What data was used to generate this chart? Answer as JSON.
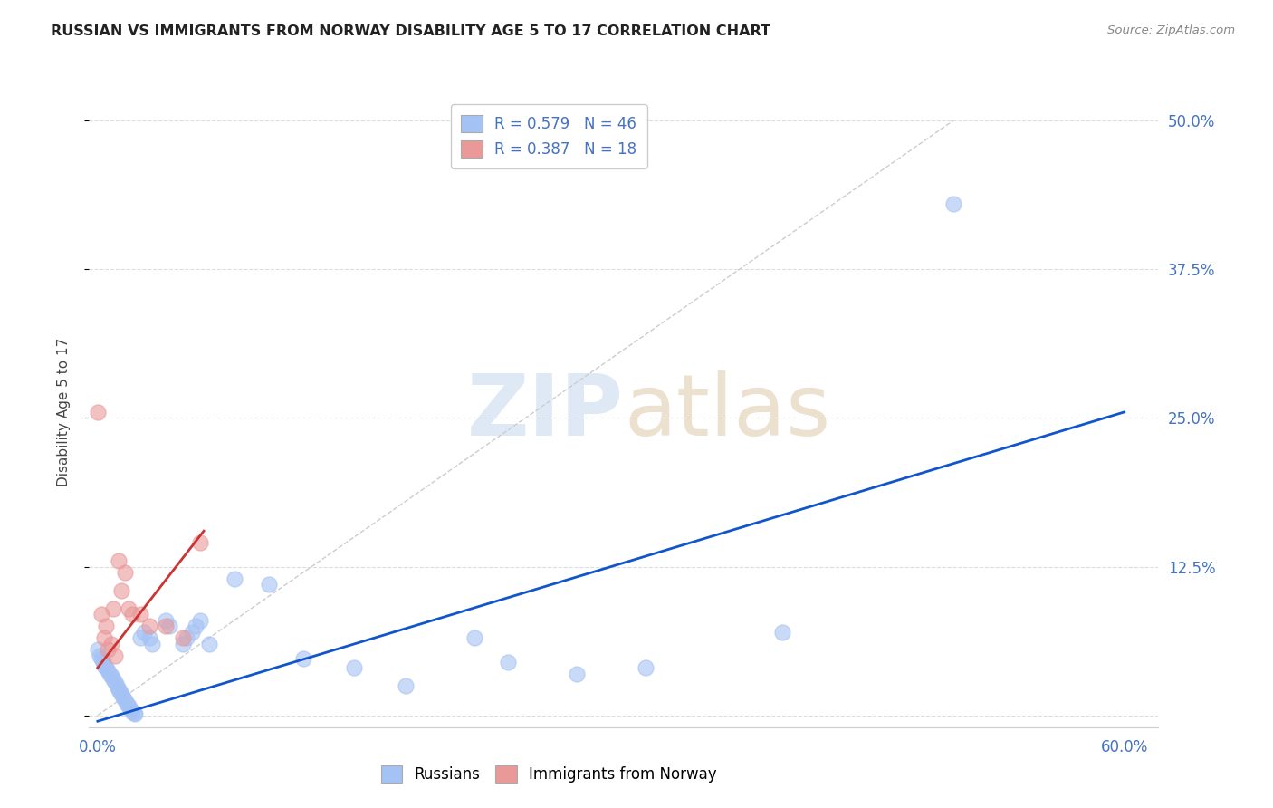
{
  "title": "RUSSIAN VS IMMIGRANTS FROM NORWAY DISABILITY AGE 5 TO 17 CORRELATION CHART",
  "source": "Source: ZipAtlas.com",
  "ylabel_label": "Disability Age 5 to 17",
  "xlim": [
    -0.005,
    0.62
  ],
  "ylim": [
    -0.01,
    0.52
  ],
  "ytick_positions_right": [
    0.0,
    0.125,
    0.25,
    0.375,
    0.5
  ],
  "ytick_labels_right": [
    "",
    "12.5%",
    "25.0%",
    "37.5%",
    "50.0%"
  ],
  "russian_R": "0.579",
  "russian_N": "46",
  "norway_R": "0.387",
  "norway_N": "18",
  "russian_color": "#a4c2f4",
  "norway_color": "#ea9999",
  "russian_line_color": "#1155cc",
  "norway_line_color": "#cc3333",
  "diagonal_color": "#cccccc",
  "background_color": "#ffffff",
  "russians_x": [
    0.0,
    0.001,
    0.002,
    0.003,
    0.004,
    0.005,
    0.006,
    0.007,
    0.008,
    0.009,
    0.01,
    0.011,
    0.012,
    0.013,
    0.014,
    0.015,
    0.016,
    0.017,
    0.018,
    0.019,
    0.02,
    0.021,
    0.022,
    0.025,
    0.027,
    0.03,
    0.032,
    0.04,
    0.042,
    0.05,
    0.052,
    0.055,
    0.057,
    0.06,
    0.065,
    0.08,
    0.1,
    0.12,
    0.15,
    0.18,
    0.22,
    0.24,
    0.28,
    0.32,
    0.4,
    0.5
  ],
  "russians_y": [
    0.055,
    0.05,
    0.048,
    0.045,
    0.042,
    0.04,
    0.038,
    0.035,
    0.033,
    0.03,
    0.028,
    0.025,
    0.022,
    0.02,
    0.018,
    0.015,
    0.013,
    0.01,
    0.008,
    0.005,
    0.003,
    0.002,
    0.001,
    0.065,
    0.07,
    0.065,
    0.06,
    0.08,
    0.075,
    0.06,
    0.065,
    0.07,
    0.075,
    0.08,
    0.06,
    0.115,
    0.11,
    0.048,
    0.04,
    0.025,
    0.065,
    0.045,
    0.035,
    0.04,
    0.07,
    0.43
  ],
  "norway_x": [
    0.0,
    0.002,
    0.004,
    0.005,
    0.006,
    0.008,
    0.009,
    0.01,
    0.012,
    0.014,
    0.016,
    0.018,
    0.02,
    0.025,
    0.03,
    0.04,
    0.05,
    0.06
  ],
  "norway_y": [
    0.255,
    0.085,
    0.065,
    0.075,
    0.055,
    0.06,
    0.09,
    0.05,
    0.13,
    0.105,
    0.12,
    0.09,
    0.085,
    0.085,
    0.075,
    0.075,
    0.065,
    0.145
  ],
  "blue_line_x": [
    0.0,
    0.6
  ],
  "blue_line_y": [
    -0.005,
    0.255
  ],
  "pink_line_x": [
    0.0,
    0.062
  ],
  "pink_line_y": [
    0.04,
    0.155
  ]
}
